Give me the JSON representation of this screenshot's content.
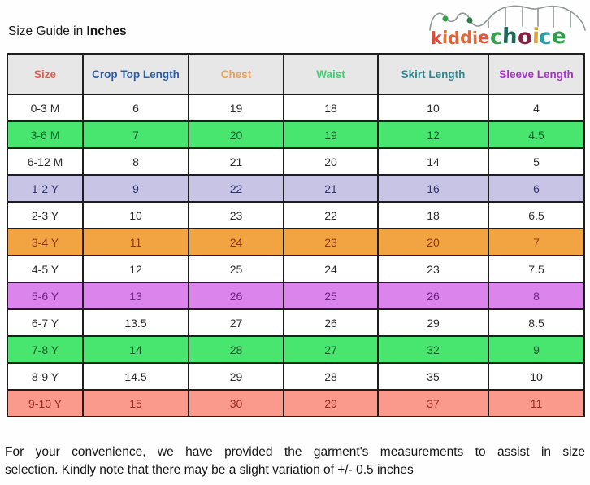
{
  "page": {
    "title_prefix": "Size Guide in ",
    "title_bold": "Inches"
  },
  "logo": {
    "name": "kiddiechoice",
    "letters": [
      {
        "ch": "k",
        "color": "#dc4b38",
        "size": "small"
      },
      {
        "ch": "i",
        "color": "#e2733a",
        "size": "small"
      },
      {
        "ch": "d",
        "color": "#df6138",
        "size": "small"
      },
      {
        "ch": "d",
        "color": "#e06a3c",
        "size": "small"
      },
      {
        "ch": "i",
        "color": "#e2733a",
        "size": "small"
      },
      {
        "ch": "e",
        "color": "#dd5640",
        "size": "small"
      },
      {
        "ch": "c",
        "color": "#3a9e4e",
        "size": "big"
      },
      {
        "ch": "h",
        "color": "#20685a",
        "size": "big"
      },
      {
        "ch": "o",
        "color": "#8a2040",
        "size": "big"
      },
      {
        "ch": "i",
        "color": "#e2a03a",
        "size": "big"
      },
      {
        "ch": "c",
        "color": "#2a9daa",
        "size": "big"
      },
      {
        "ch": "e",
        "color": "#2e9e4a",
        "size": "big"
      }
    ],
    "track_color": "#8f9694",
    "ball_color": "#3a9e4e"
  },
  "table": {
    "headers": [
      {
        "label": "Size",
        "color": "#e25c4f"
      },
      {
        "label": "Crop Top Length",
        "color": "#2a5dab"
      },
      {
        "label": "Chest",
        "color": "#e8a05a"
      },
      {
        "label": "Waist",
        "color": "#3fcf74"
      },
      {
        "label": "Skirt Length",
        "color": "#2a8a93"
      },
      {
        "label": "Sleeve Length",
        "color": "#a832cc"
      }
    ],
    "rows": [
      {
        "size": "0-3 M",
        "values": [
          "6",
          "19",
          "18",
          "10",
          "4"
        ],
        "bg": "#ffffff",
        "fg": "#2b2b2b"
      },
      {
        "size": "3-6 M",
        "values": [
          "7",
          "20",
          "19",
          "12",
          "4.5"
        ],
        "bg": "#48e56f",
        "fg": "#175f2c"
      },
      {
        "size": "6-12 M",
        "values": [
          "8",
          "21",
          "20",
          "14",
          "5"
        ],
        "bg": "#ffffff",
        "fg": "#2b2b2b"
      },
      {
        "size": "1-2 Y",
        "values": [
          "9",
          "22",
          "21",
          "16",
          "6"
        ],
        "bg": "#c7c4e6",
        "fg": "#33336b"
      },
      {
        "size": "2-3 Y",
        "values": [
          "10",
          "23",
          "22",
          "18",
          "6.5"
        ],
        "bg": "#ffffff",
        "fg": "#2b2b2b"
      },
      {
        "size": "3-4 Y",
        "values": [
          "11",
          "24",
          "23",
          "20",
          "7"
        ],
        "bg": "#f2a342",
        "fg": "#8f3911"
      },
      {
        "size": "4-5 Y",
        "values": [
          "12",
          "25",
          "24",
          "23",
          "7.5"
        ],
        "bg": "#ffffff",
        "fg": "#2b2b2b"
      },
      {
        "size": "5-6 Y",
        "values": [
          "13",
          "26",
          "25",
          "26",
          "8"
        ],
        "bg": "#db85ec",
        "fg": "#6e2180"
      },
      {
        "size": "6-7 Y",
        "values": [
          "13.5",
          "27",
          "26",
          "29",
          "8.5"
        ],
        "bg": "#ffffff",
        "fg": "#2b2b2b"
      },
      {
        "size": "7-8 Y",
        "values": [
          "14",
          "28",
          "27",
          "32",
          "9"
        ],
        "bg": "#48e56f",
        "fg": "#175f2c"
      },
      {
        "size": "8-9 Y",
        "values": [
          "14.5",
          "29",
          "28",
          "35",
          "10"
        ],
        "bg": "#ffffff",
        "fg": "#2b2b2b"
      },
      {
        "size": "9-10 Y",
        "values": [
          "15",
          "30",
          "29",
          "37",
          "11"
        ],
        "bg": "#f99a8d",
        "fg": "#9e2b24"
      }
    ]
  },
  "footer": {
    "line1": "For your convenience, we have provided the garment's measurements to assist in size",
    "line2": "selection. Kindly note that there may be a slight variation of +/- 0.5 inches"
  }
}
